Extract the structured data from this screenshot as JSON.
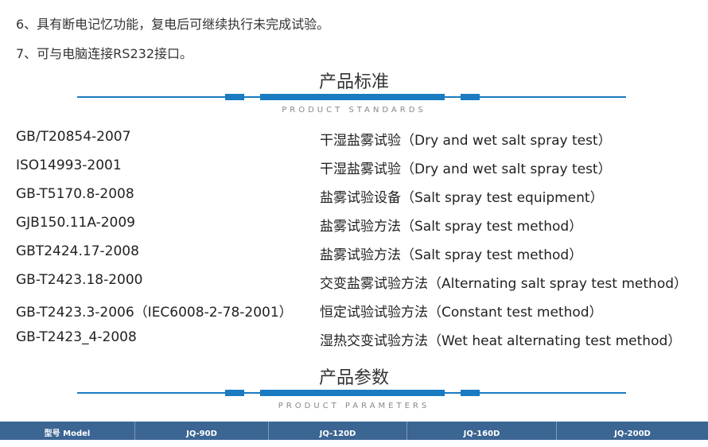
{
  "features": [
    "6、具有断电记忆功能，复电后可继续执行未完成试验。",
    "7、可与电脑连接RS232接口。"
  ],
  "standards_section": {
    "title": "产品标准",
    "subtitle": "PRODUCT STANDARDS",
    "items": [
      {
        "code": "GB/T20854-2007",
        "desc": "干湿盐雾试验（Dry and wet salt spray test）"
      },
      {
        "code": "ISO14993-2001",
        "desc": "干湿盐雾试验（Dry and wet salt spray test）"
      },
      {
        "code": "GB-T5170.8-2008",
        "desc": "盐雾试验设备（Salt spray test equipment）"
      },
      {
        "code": "GJB150.11A-2009",
        "desc": "盐雾试验方法（Salt spray test method）"
      },
      {
        "code": "GBT2424.17-2008",
        "desc": "盐雾试验方法（Salt spray test method）"
      },
      {
        "code": "GB-T2423.18-2000",
        "desc": "交变盐雾试验方法（Alternating salt spray test method）"
      },
      {
        "code": "GB-T2423.3-2006（IEC6008-2-78-2001）",
        "desc": "恒定试验试验方法（Constant test method）"
      },
      {
        "code": "GB-T2423_4-2008",
        "desc": "湿热交变试验方法（Wet heat alternating test method）"
      }
    ]
  },
  "parameters_section": {
    "title": "产品参数",
    "subtitle": "PRODUCT PARAMETERS",
    "table_headers": [
      "型号 Model",
      "JQ-90D",
      "JQ-120D",
      "JQ-160D",
      "JQ-200D"
    ]
  },
  "colors": {
    "accent": "#1a7bc1",
    "table_header": "#3b6593"
  }
}
